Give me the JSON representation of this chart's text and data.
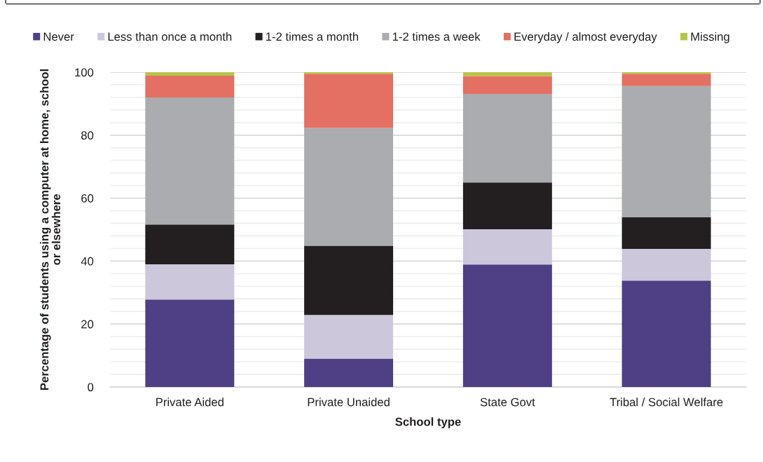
{
  "chart_data": {
    "type": "bar",
    "stacked": true,
    "categories": [
      "Private Aided",
      "Private Unaided",
      "State Govt",
      "Tribal / Social Welfare"
    ],
    "series": [
      {
        "name": "Never",
        "color": "#4f3f85",
        "values": [
          27.8,
          9.0,
          38.9,
          33.8
        ]
      },
      {
        "name": "Less than once a month",
        "color": "#ccc7da",
        "values": [
          11.2,
          13.9,
          11.2,
          10.1
        ]
      },
      {
        "name": "1-2 times a month",
        "color": "#231f20",
        "values": [
          12.6,
          22.0,
          14.9,
          10.0
        ]
      },
      {
        "name": "1-2 times a week",
        "color": "#abacaf",
        "values": [
          40.4,
          37.4,
          28.1,
          41.7
        ]
      },
      {
        "name": "Everyday / almost everyday",
        "color": "#e37062",
        "values": [
          6.9,
          17.2,
          5.7,
          3.9
        ]
      },
      {
        "name": "Missing",
        "color": "#b6c34a",
        "values": [
          1.1,
          0.5,
          1.2,
          0.5
        ]
      }
    ],
    "ylim": [
      0,
      100
    ],
    "yticks": [
      0,
      {
        "value": 4,
        "label": null
      },
      {
        "value": 8,
        "label": null
      },
      {
        "value": 12,
        "label": null
      },
      {
        "value": 16,
        "label": null
      },
      20,
      {
        "value": 24,
        "label": null
      },
      {
        "value": 28,
        "label": null
      },
      {
        "value": 32,
        "label": null
      },
      {
        "value": 36,
        "label": null
      },
      40,
      {
        "value": 44,
        "label": null
      },
      {
        "value": 48,
        "label": null
      },
      {
        "value": 52,
        "label": null
      },
      {
        "value": 56,
        "label": null
      },
      60,
      {
        "value": 64,
        "label": null
      },
      {
        "value": 68,
        "label": null
      },
      {
        "value": 72,
        "label": null
      },
      {
        "value": 76,
        "label": null
      },
      80,
      {
        "value": 84,
        "label": null
      },
      {
        "value": 88,
        "label": null
      },
      {
        "value": 92,
        "label": null
      },
      {
        "value": 96,
        "label": null
      },
      100
    ],
    "xlabel": "School type",
    "ylabel": "Percentage of students using a computer at home, school\nor elsewhere",
    "grid": "y",
    "legend": "top"
  }
}
